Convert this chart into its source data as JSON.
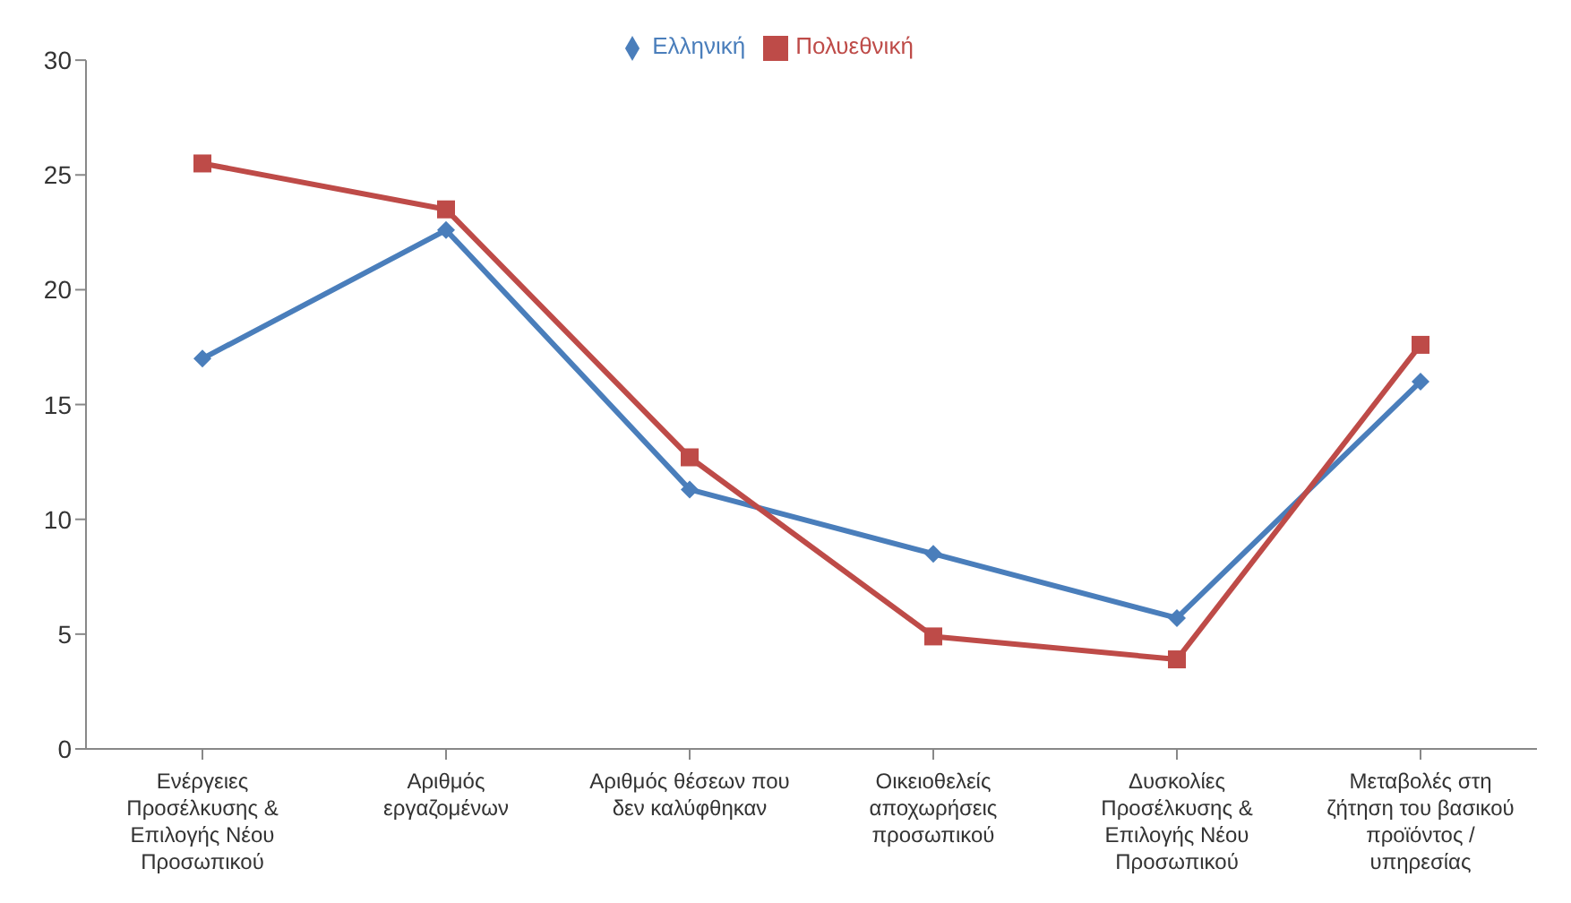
{
  "chart_data": {
    "type": "line",
    "categories": [
      "Ενέργειες Προσέλκυσης & Επιλογής Νέου Προσωπικού",
      "Αριθμός εργαζομένων",
      "Αριθμός θέσεων που δεν καλύφθηκαν",
      "Οικειοθελείς αποχωρήσεις προσωπικού",
      "Δυσκολίες Προσέλκυσης & Επιλογής Νέου Προσωπικού",
      "Μεταβολές στη ζήτηση του βασικού προϊόντος / υπηρεσίας"
    ],
    "series": [
      {
        "name": "Ελληνική",
        "color": "#4a7ebb",
        "marker": "diamond",
        "values": [
          17,
          22.6,
          11.3,
          8.5,
          5.7,
          16
        ]
      },
      {
        "name": "Πολυεθνική",
        "color": "#be4b48",
        "marker": "square",
        "values": [
          25.5,
          23.5,
          12.7,
          4.9,
          3.9,
          17.6
        ]
      }
    ],
    "ylim": [
      0,
      30
    ],
    "yticks": [
      0,
      5,
      10,
      15,
      20,
      25,
      30
    ],
    "grid": false,
    "legend": "top"
  }
}
